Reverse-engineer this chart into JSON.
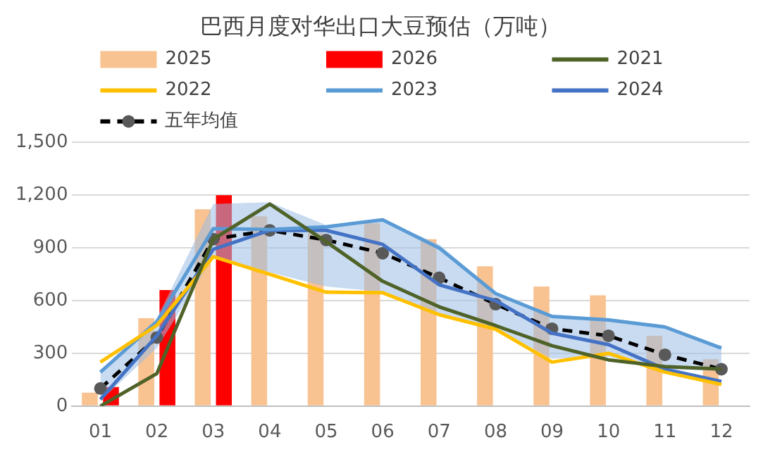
{
  "chart_data": {
    "type": "bar",
    "title": "巴西月度对华出口大豆预估（万吨）",
    "categories": [
      "01",
      "02",
      "03",
      "04",
      "05",
      "06",
      "07",
      "08",
      "09",
      "10",
      "11",
      "12"
    ],
    "series": [
      {
        "name": "2025",
        "color": "#f8c291",
        "values": [
          76,
          500,
          1120,
          1080,
          985,
          1040,
          950,
          795,
          680,
          630,
          400,
          267
        ]
      },
      {
        "name": "2026",
        "color": "#ff0000",
        "values": [
          108,
          660,
          1200,
          null,
          null,
          null,
          null,
          null,
          null,
          null,
          null,
          null
        ]
      },
      {
        "name": "2021",
        "type": "line",
        "color": "#4f6228",
        "values": [
          0,
          185,
          950,
          1150,
          935,
          710,
          565,
          458,
          343,
          263,
          225,
          210
        ]
      },
      {
        "name": "2022",
        "type": "line",
        "color": "#ffc000",
        "values": [
          250,
          460,
          850,
          750,
          648,
          645,
          520,
          438,
          250,
          300,
          193,
          123
        ]
      },
      {
        "name": "2023",
        "type": "line",
        "color": "#5b9bd5",
        "values": [
          193,
          480,
          1010,
          1005,
          1020,
          1060,
          900,
          640,
          510,
          490,
          450,
          330
        ]
      },
      {
        "name": "2024",
        "type": "line",
        "color": "#4472c4",
        "values": [
          38,
          400,
          892,
          1000,
          1000,
          920,
          690,
          600,
          415,
          350,
          210,
          140
        ]
      },
      {
        "name": "五年均值",
        "type": "line",
        "color": "#000000",
        "line_style": "dashed",
        "marker": "circle",
        "values": [
          100,
          390,
          950,
          1000,
          945,
          870,
          730,
          580,
          440,
          400,
          292,
          210
        ],
        "lower": [
          30,
          330,
          850,
          760,
          680,
          650,
          520,
          440,
          270,
          280,
          210,
          200
        ],
        "upper": [
          200,
          500,
          1150,
          1160,
          1030,
          1060,
          920,
          650,
          520,
          500,
          460,
          330
        ]
      }
    ],
    "ylim": [
      0,
      1500
    ],
    "yticks": [
      {
        "value": 0,
        "label": "0"
      },
      {
        "value": 300,
        "label": "300"
      },
      {
        "value": 600,
        "label": "600"
      },
      {
        "value": 900,
        "label": "900"
      },
      {
        "value": 1200,
        "label": "1,200"
      },
      {
        "value": 1500,
        "label": "1,500"
      }
    ],
    "grid": "y",
    "legend": "top",
    "marker": "none",
    "line_style": "solid"
  }
}
